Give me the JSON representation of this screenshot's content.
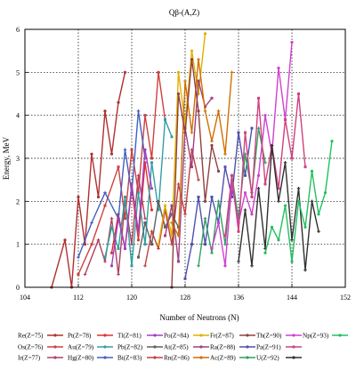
{
  "chart_data": {
    "type": "line",
    "title": "Qβ-(A,Z)",
    "xlabel": "Number of Neutrons (N)",
    "ylabel": "Energy, MeV",
    "xlim": [
      104,
      152
    ],
    "ylim": [
      0,
      6
    ],
    "xticks": [
      104,
      112,
      120,
      128,
      136,
      144,
      152
    ],
    "yticks": [
      0,
      1,
      2,
      3,
      4,
      5,
      6
    ],
    "grid": true,
    "legend_position": "bottom",
    "series": [
      {
        "name": "Re(Z=75)",
        "color": "#b03030",
        "x": [
          108,
          110,
          111,
          112,
          113,
          114,
          115,
          116,
          117,
          118,
          119
        ],
        "y": [
          0.0,
          1.1,
          0.0,
          2.1,
          1.0,
          3.1,
          2.1,
          4.1,
          3.1,
          4.3,
          5.0
        ]
      },
      {
        "name": "Os(Z=76)",
        "color": "#d04040",
        "x": [
          112,
          114,
          116,
          118,
          119,
          120,
          121,
          122,
          123,
          124,
          125
        ],
        "y": [
          0.3,
          1.0,
          1.9,
          2.8,
          1.6,
          3.2,
          2.2,
          4.0,
          3.0,
          5.0,
          3.9
        ]
      },
      {
        "name": "Ir(Z=77)",
        "color": "#b04060",
        "x": [
          113,
          115,
          116,
          117,
          118,
          119,
          120,
          121,
          122
        ],
        "y": [
          0.3,
          1.1,
          0.6,
          1.6,
          0.3,
          2.0,
          1.0,
          2.6,
          1.6
        ]
      },
      {
        "name": "Pt(Z=78)",
        "color": "#e03030",
        "x": [
          117,
          118,
          119,
          120,
          121,
          122,
          123
        ],
        "y": [
          0.8,
          1.7,
          0.9,
          2.3,
          1.1,
          2.9,
          1.8
        ]
      },
      {
        "name": "Au(Z=79)",
        "color": "#30a0a0",
        "x": [
          116,
          117,
          118,
          119,
          120,
          121,
          122,
          123,
          124,
          125,
          126
        ],
        "y": [
          0.7,
          1.4,
          0.9,
          2.1,
          0.5,
          2.2,
          1.0,
          2.9,
          1.8,
          3.9,
          3.5
        ]
      },
      {
        "name": "Hg(Z=80)",
        "color": "#4060c0",
        "x": [
          112,
          114,
          116,
          118,
          119,
          120,
          121,
          122
        ],
        "y": [
          0.7,
          1.5,
          2.2,
          1.6,
          3.2,
          2.2,
          4.1,
          3.0
        ]
      },
      {
        "name": "Tl(Z=81)",
        "color": "#a040c0",
        "x": [
          117,
          118,
          119,
          120,
          121,
          122,
          123
        ],
        "y": [
          0.5,
          1.6,
          0.9,
          2.4,
          1.3,
          3.2,
          2.3
        ]
      },
      {
        "name": "Pb(Z=82)",
        "color": "#606060",
        "x": [
          121,
          122,
          123,
          124,
          125,
          126,
          127
        ],
        "y": [
          0.7,
          1.5,
          1.0,
          2.0,
          1.4,
          1.7,
          1.4
        ]
      },
      {
        "name": "Bi(Z=83)",
        "color": "#c04040",
        "x": [
          122,
          123,
          124,
          125,
          126,
          127,
          128,
          129,
          130
        ],
        "y": [
          0.5,
          1.3,
          0.9,
          1.8,
          1.0,
          2.4,
          1.7,
          3.2,
          2.5
        ]
      },
      {
        "name": "Po(Z=84)",
        "color": "#e0b000",
        "x": [
          124,
          125,
          126,
          127,
          128,
          129,
          130,
          131
        ],
        "y": [
          1.0,
          1.9,
          1.2,
          5.0,
          3.8,
          5.5,
          4.5,
          5.9
        ]
      },
      {
        "name": "At(Z=85)",
        "color": "#a04080",
        "x": [
          125,
          126,
          127,
          128,
          129,
          130,
          131,
          132
        ],
        "y": [
          1.2,
          1.9,
          0.6,
          3.7,
          2.8,
          4.8,
          4.2,
          4.4
        ]
      },
      {
        "name": "Rn(Z=86)",
        "color": "#d07000",
        "x": [
          126,
          127,
          128,
          129,
          130,
          131,
          132,
          133,
          134,
          135
        ],
        "y": [
          1.5,
          1.2,
          4.8,
          3.6,
          5.3,
          4.1,
          3.4,
          4.1,
          3.1,
          5.0
        ]
      },
      {
        "name": "Fr(Z=87)",
        "color": "#904040",
        "x": [
          126,
          127,
          128,
          129,
          130,
          131,
          132,
          133
        ],
        "y": [
          0.0,
          4.5,
          3.6,
          5.3,
          4.1,
          2.0,
          3.3,
          2.7
        ]
      },
      {
        "name": "Ra(Z=88)",
        "color": "#5050b0",
        "x": [
          128,
          129,
          130,
          131,
          132,
          133,
          134,
          135,
          136,
          137,
          138
        ],
        "y": [
          0.2,
          1.0,
          2.1,
          1.0,
          2.1,
          1.5,
          2.8,
          2.1,
          3.6,
          2.6,
          3.7
        ]
      },
      {
        "name": "Ac(Z=89)",
        "color": "#30a060",
        "x": [
          130,
          131,
          132,
          133,
          134,
          135,
          136,
          137,
          138,
          139,
          140
        ],
        "y": [
          0.5,
          1.6,
          0.8,
          2.0,
          1.0,
          2.6,
          1.6,
          3.1,
          2.2,
          3.7,
          2.9
        ]
      },
      {
        "name": "Th(Z=90)",
        "color": "#d040d0",
        "x": [
          132,
          133,
          134,
          135,
          136,
          137,
          138,
          139,
          140,
          141,
          142,
          143,
          144
        ],
        "y": [
          0.9,
          1.5,
          0.5,
          2.4,
          1.5,
          2.2,
          1.7,
          2.6,
          4.0,
          3.1,
          5.1,
          3.9,
          5.7
        ]
      },
      {
        "name": "Pa(Z=91)",
        "color": "#d04080",
        "x": [
          134,
          135,
          136,
          137,
          138,
          139,
          140,
          141,
          142,
          143,
          144,
          145,
          146
        ],
        "y": [
          1.2,
          2.6,
          1.3,
          3.6,
          2.1,
          4.4,
          2.4,
          3.3,
          2.3,
          3.9,
          3.0,
          4.5,
          2.8
        ]
      },
      {
        "name": "U(Z=92)",
        "color": "#303030",
        "x": [
          136,
          137,
          138,
          139,
          140,
          141,
          142,
          143,
          144,
          145,
          146,
          147,
          148
        ],
        "y": [
          0.6,
          1.8,
          0.5,
          2.3,
          0.9,
          3.3,
          2.0,
          2.9,
          1.1,
          2.3,
          0.4,
          2.0,
          1.3
        ]
      },
      {
        "name": "Np(Z=93)",
        "color": "#20c060",
        "x": [
          140,
          141,
          142,
          143,
          144,
          145,
          146,
          147,
          148,
          149,
          150
        ],
        "y": [
          0.8,
          1.4,
          1.1,
          1.9,
          0.6,
          2.0,
          1.4,
          2.7,
          1.7,
          2.2,
          3.4
        ]
      }
    ]
  }
}
